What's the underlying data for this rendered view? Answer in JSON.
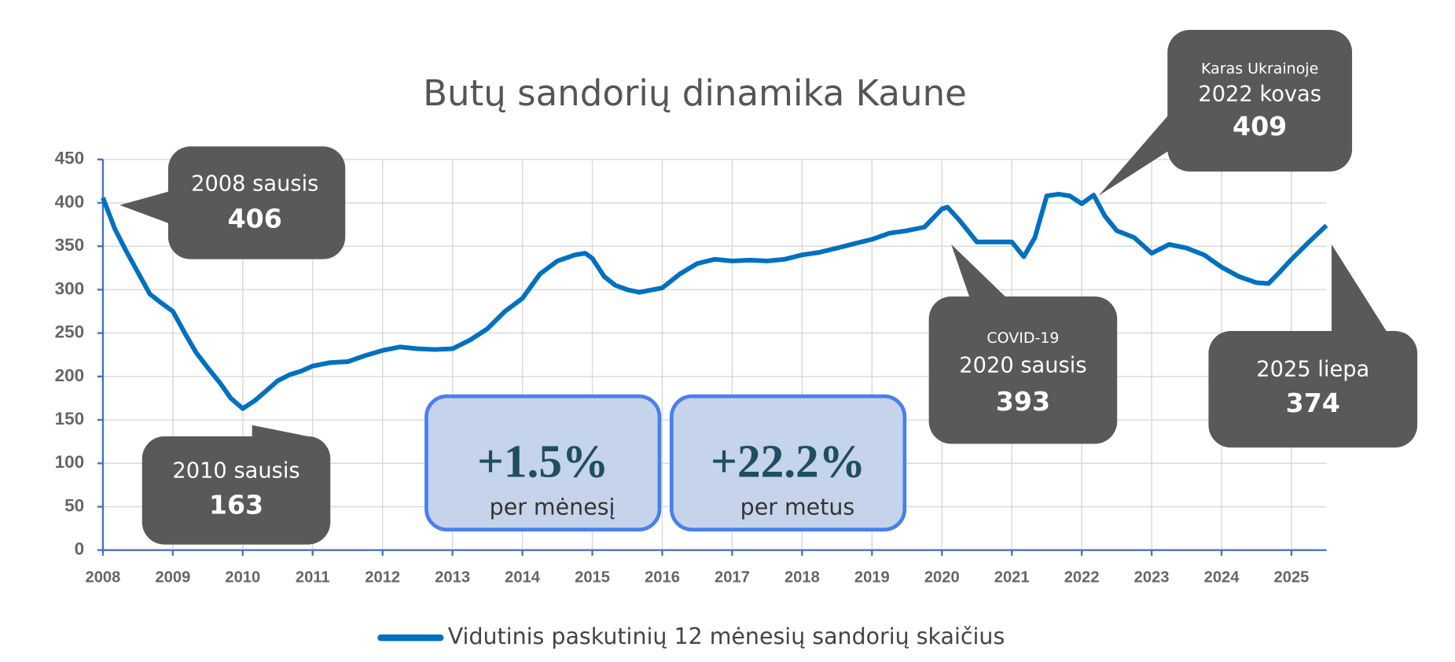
{
  "chart_data": {
    "type": "line",
    "title": "Butų sandorių dinamika Kaune",
    "x": [
      2008.0,
      2008.17,
      2008.33,
      2008.5,
      2008.67,
      2008.83,
      2009.0,
      2009.17,
      2009.33,
      2009.5,
      2009.67,
      2009.83,
      2010.0,
      2010.17,
      2010.33,
      2010.5,
      2010.67,
      2010.83,
      2011.0,
      2011.25,
      2011.5,
      2011.75,
      2012.0,
      2012.25,
      2012.5,
      2012.75,
      2013.0,
      2013.25,
      2013.5,
      2013.75,
      2014.0,
      2014.25,
      2014.5,
      2014.75,
      2014.9,
      2015.0,
      2015.17,
      2015.33,
      2015.5,
      2015.67,
      2016.0,
      2016.25,
      2016.5,
      2016.75,
      2017.0,
      2017.25,
      2017.5,
      2017.75,
      2018.0,
      2018.25,
      2018.5,
      2018.75,
      2019.0,
      2019.25,
      2019.5,
      2019.75,
      2020.0,
      2020.08,
      2020.25,
      2020.5,
      2020.75,
      2021.0,
      2021.17,
      2021.33,
      2021.5,
      2021.67,
      2021.83,
      2022.0,
      2022.17,
      2022.33,
      2022.5,
      2022.75,
      2023.0,
      2023.25,
      2023.5,
      2023.75,
      2024.0,
      2024.25,
      2024.5,
      2024.67,
      2024.83,
      2025.0,
      2025.25,
      2025.5
    ],
    "series": [
      {
        "name": "Vidutinis paskutinių 12 mėnesių sandorių skaičius",
        "color": "#0070c0",
        "values": [
          406,
          370,
          345,
          320,
          295,
          285,
          275,
          250,
          228,
          210,
          193,
          175,
          163,
          172,
          183,
          195,
          202,
          206,
          212,
          216,
          217,
          224,
          230,
          234,
          232,
          231,
          232,
          242,
          255,
          275,
          290,
          318,
          333,
          340,
          342,
          336,
          315,
          305,
          300,
          297,
          302,
          318,
          330,
          335,
          333,
          334,
          333,
          335,
          340,
          343,
          348,
          353,
          358,
          365,
          368,
          372,
          393,
          395,
          380,
          355,
          355,
          355,
          338,
          360,
          408,
          410,
          408,
          399,
          409,
          385,
          368,
          360,
          342,
          352,
          348,
          340,
          326,
          315,
          308,
          307,
          320,
          335,
          355,
          374
        ]
      }
    ],
    "xlim": [
      2008,
      2025.5
    ],
    "xticks": [
      2008,
      2009,
      2010,
      2011,
      2012,
      2013,
      2014,
      2015,
      2016,
      2017,
      2018,
      2019,
      2020,
      2021,
      2022,
      2023,
      2024,
      2025
    ],
    "ylim": [
      0,
      450
    ],
    "yticks": [
      0,
      50,
      100,
      150,
      200,
      250,
      300,
      350,
      400,
      450
    ],
    "grid": true,
    "annotations": [
      {
        "label": "2008 sausis",
        "value": 406
      },
      {
        "label": "2010 sausis",
        "value": 163
      },
      {
        "note": "COVID-19",
        "label": "2020 sausis",
        "value": 393
      },
      {
        "note": "Karas Ukrainoje",
        "label": "2022 kovas",
        "value": 409
      },
      {
        "label": "2025 liepa",
        "value": 374
      }
    ],
    "kpis": [
      {
        "value": "+1.5%",
        "label": "per mėnesį"
      },
      {
        "value": "+22.2%",
        "label": "per metus"
      }
    ]
  }
}
